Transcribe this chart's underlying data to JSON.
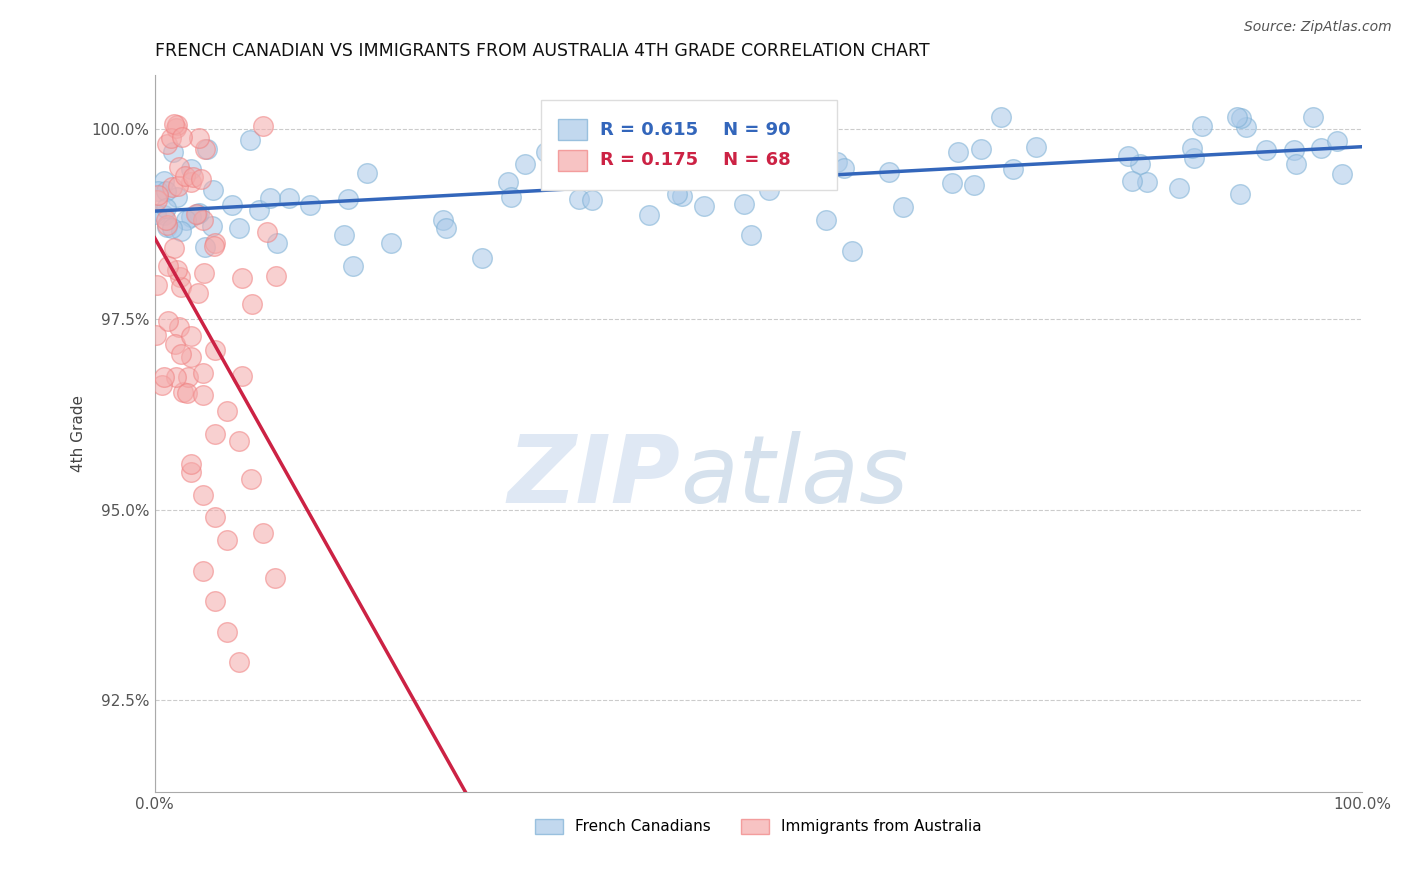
{
  "title": "FRENCH CANADIAN VS IMMIGRANTS FROM AUSTRALIA 4TH GRADE CORRELATION CHART",
  "source_text": "Source: ZipAtlas.com",
  "ylabel": "4th Grade",
  "xlim": [
    0.0,
    100.0
  ],
  "ylim": [
    91.3,
    100.7
  ],
  "yticks": [
    92.5,
    95.0,
    97.5,
    100.0
  ],
  "xtick_labels": [
    "0.0%",
    "100.0%"
  ],
  "ytick_labels": [
    "92.5%",
    "95.0%",
    "97.5%",
    "100.0%"
  ],
  "blue_color": "#7BAFD4",
  "pink_color": "#F08080",
  "blue_fill": "#A8C8E8",
  "pink_fill": "#F4AAAA",
  "blue_line_color": "#3366BB",
  "pink_line_color": "#CC2244",
  "legend_R_blue": "R = 0.615",
  "legend_N_blue": "N = 90",
  "legend_R_pink": "R = 0.175",
  "legend_N_pink": "N = 68",
  "legend_label_blue": "French Canadians",
  "legend_label_pink": "Immigrants from Australia",
  "watermark_zip": "ZIP",
  "watermark_atlas": "atlas",
  "background_color": "#FFFFFF",
  "grid_color": "#CCCCCC",
  "blue_N": 90,
  "pink_N": 68,
  "blue_R": 0.615,
  "pink_R": 0.175
}
